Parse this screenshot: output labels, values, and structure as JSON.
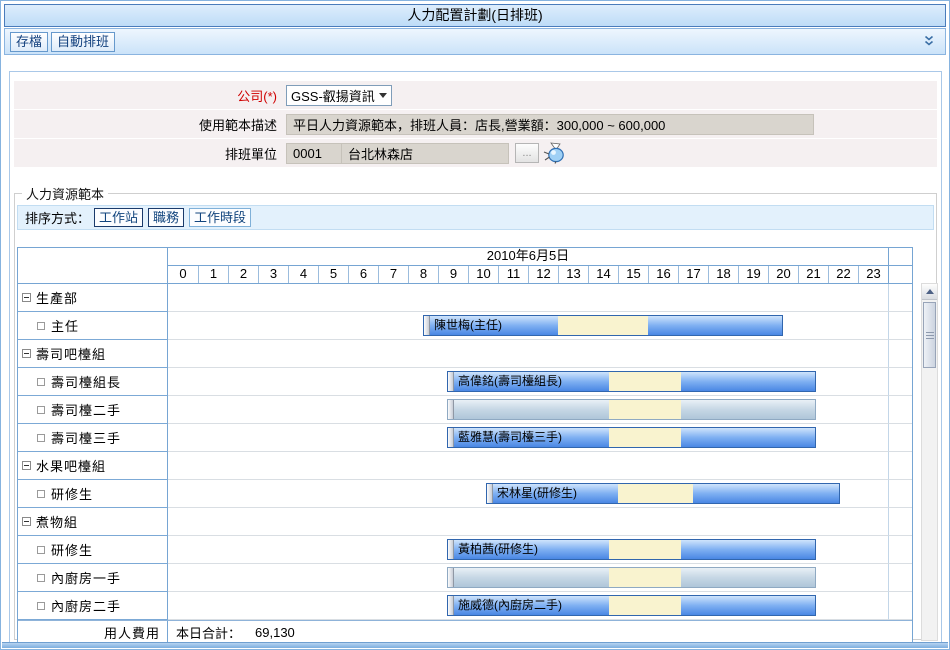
{
  "window": {
    "title": "人力配置計劃(日排班)"
  },
  "toolbar": {
    "save": "存檔",
    "auto_schedule": "自動排班"
  },
  "form": {
    "company": {
      "label": "公司(*)",
      "value": "GSS-叡揚資訊"
    },
    "template_desc": {
      "label": "使用範本描述",
      "value": "平日人力資源範本，排班人員：店長,營業額：300,000 ~ 600,000"
    },
    "unit": {
      "label": "排班單位",
      "code": "0001",
      "name": "台北林森店",
      "browse": "..."
    }
  },
  "template_section": {
    "legend": "人力資源範本",
    "sort_label": "排序方式：",
    "sort_buttons": [
      {
        "label": "工作站",
        "active": true
      },
      {
        "label": "職務",
        "active": true
      },
      {
        "label": "工作時段",
        "active": false
      }
    ]
  },
  "gantt": {
    "date_header": "2010年6月5日",
    "hours": [
      "0",
      "1",
      "2",
      "3",
      "4",
      "5",
      "6",
      "7",
      "8",
      "9",
      "10",
      "11",
      "12",
      "13",
      "14",
      "15",
      "16",
      "17",
      "18",
      "19",
      "20",
      "21",
      "22",
      "23"
    ],
    "rows": [
      {
        "type": "group",
        "label": "生產部"
      },
      {
        "type": "job",
        "label": "主任",
        "bar": {
          "text": "陳世梅(主任)",
          "assigned": true,
          "start": 8.5,
          "end": 20.5,
          "break_start": 13,
          "break_end": 16
        }
      },
      {
        "type": "group",
        "label": "壽司吧檯組"
      },
      {
        "type": "job",
        "label": "壽司檯組長",
        "bar": {
          "text": "高偉銘(壽司檯組長)",
          "assigned": true,
          "start": 9.3,
          "end": 21.6,
          "break_start": 14.7,
          "break_end": 17.1
        }
      },
      {
        "type": "job",
        "label": "壽司檯二手",
        "bar": {
          "text": "",
          "assigned": false,
          "start": 9.3,
          "end": 21.6,
          "break_start": 14.7,
          "break_end": 17.1
        }
      },
      {
        "type": "job",
        "label": "壽司檯三手",
        "bar": {
          "text": "藍雅慧(壽司檯三手)",
          "assigned": true,
          "start": 9.3,
          "end": 21.6,
          "break_start": 14.7,
          "break_end": 17.1
        }
      },
      {
        "type": "group",
        "label": "水果吧檯組"
      },
      {
        "type": "job",
        "label": "研修生",
        "bar": {
          "text": "宋林星(研修生)",
          "assigned": true,
          "start": 10.6,
          "end": 22.4,
          "break_start": 15,
          "break_end": 17.5
        }
      },
      {
        "type": "group",
        "label": "煮物組"
      },
      {
        "type": "job",
        "label": "研修生",
        "bar": {
          "text": "黃柏茜(研修生)",
          "assigned": true,
          "start": 9.3,
          "end": 21.6,
          "break_start": 14.7,
          "break_end": 17.1
        }
      },
      {
        "type": "job",
        "label": "內廚房一手",
        "bar": {
          "text": "",
          "assigned": false,
          "start": 9.3,
          "end": 21.6,
          "break_start": 14.7,
          "break_end": 17.1
        }
      },
      {
        "type": "job",
        "label": "內廚房二手",
        "bar": {
          "text": "施威德(內廚房二手)",
          "assigned": true,
          "start": 9.3,
          "end": 21.6,
          "break_start": 14.7,
          "break_end": 17.1
        }
      }
    ],
    "summary": {
      "label": "用人費用",
      "prefix": "本日合計：",
      "value": "69,130"
    }
  },
  "colors": {
    "bar_assigned": "#4a87e4",
    "bar_unassigned": "#b7cdde",
    "bar_break": "#f9f3cf",
    "table_border": "#76a5d3",
    "required_label": "#cf0000"
  }
}
